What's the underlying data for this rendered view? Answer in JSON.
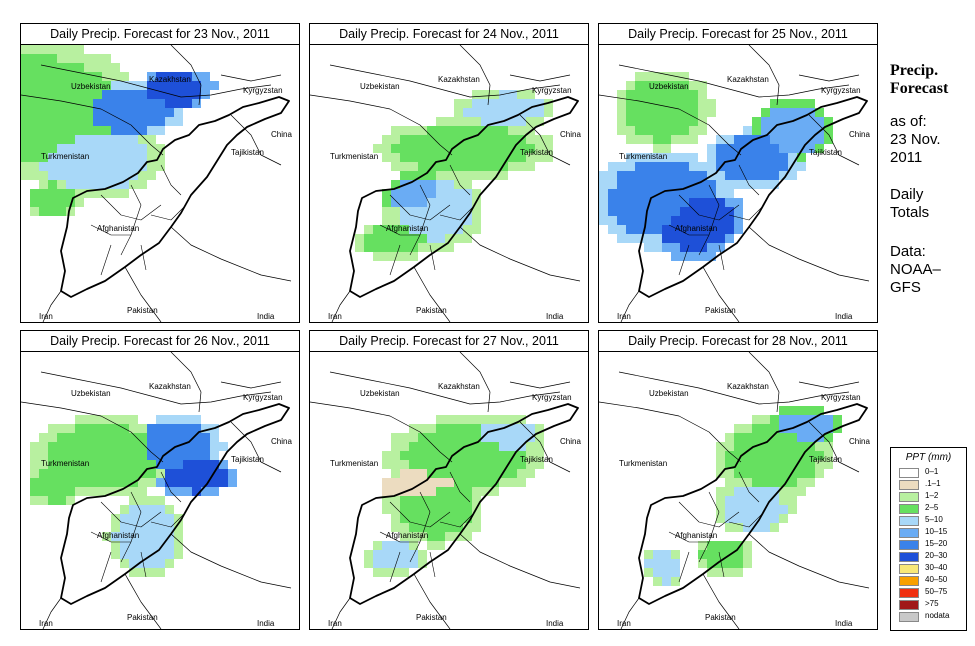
{
  "side_panel": {
    "title_line1": "Precip.",
    "title_line2": "Forecast",
    "asof_line1": "as of:",
    "asof_line2": "23 Nov.",
    "asof_line3": "2011",
    "totals_line1": "Daily",
    "totals_line2": "Totals",
    "data_line1": "Data:",
    "data_line2": "NOAA–",
    "data_line3": "GFS"
  },
  "map_labels": {
    "uzbekistan": "Uzbekistan",
    "kazakhstan": "Kazakhstan",
    "kyrgyzstan": "Kyrgyzstan",
    "china": "China",
    "turkmenistan": "Turkmenistan",
    "tajikistan": "Tajikistan",
    "afghanistan": "Afghanistan",
    "pakistan": "Pakistan",
    "iran": "Iran",
    "india": "India"
  },
  "panels": [
    {
      "title": "Daily Precip. Forecast for  23 Nov., 2011"
    },
    {
      "title": "Daily Precip. Forecast for  24 Nov., 2011"
    },
    {
      "title": "Daily Precip. Forecast for  25 Nov., 2011"
    },
    {
      "title": "Daily Precip. Forecast for  26 Nov., 2011"
    },
    {
      "title": "Daily Precip. Forecast for  27 Nov., 2011"
    },
    {
      "title": "Daily Precip. Forecast for  28 Nov., 2011"
    }
  ],
  "legend": {
    "title": "PPT (mm)",
    "items": [
      {
        "label": "0–1",
        "color": "#ffffff"
      },
      {
        "label": ".1–1",
        "color": "#ecdcc0"
      },
      {
        "label": "1–2",
        "color": "#b8f0a0"
      },
      {
        "label": "2–5",
        "color": "#66e060"
      },
      {
        "label": "5–10",
        "color": "#a8d8f8"
      },
      {
        "label": "10–15",
        "color": "#6aacf4"
      },
      {
        "label": "15–20",
        "color": "#3a82ea"
      },
      {
        "label": "20–30",
        "color": "#1e50d8"
      },
      {
        "label": "30–40",
        "color": "#f8e878"
      },
      {
        "label": "40–50",
        "color": "#f8a000"
      },
      {
        "label": "50–75",
        "color": "#f03010"
      },
      {
        "label": ">75",
        "color": "#a01818"
      },
      {
        "label": "nodata",
        "color": "#c8c8c8"
      }
    ]
  }
}
